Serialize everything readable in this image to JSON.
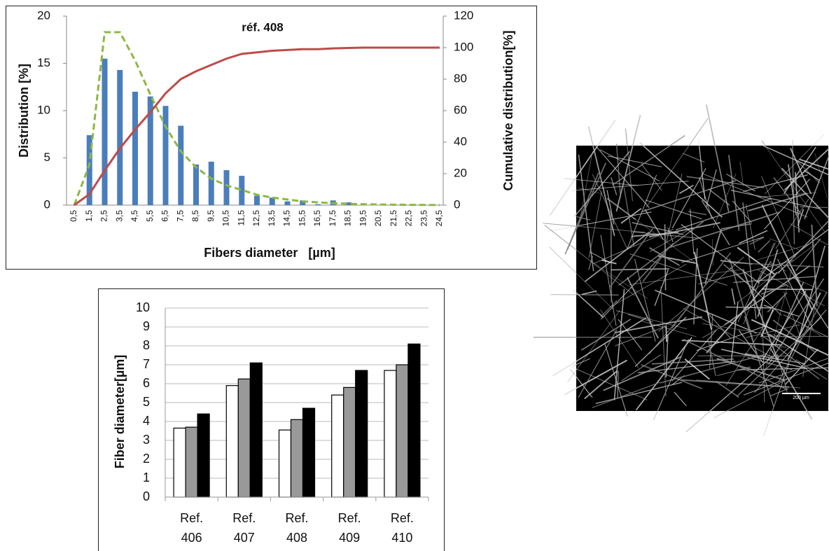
{
  "chart_data": [
    {
      "type": "bar",
      "title": "réf. 408",
      "xlabel": "Fibers diameter   [µm]",
      "ylabel": "Distribution [%]",
      "y2label": "Cumulative distribution[%]",
      "categories": [
        "0,5",
        "1,5",
        "2,5",
        "3,5",
        "4,5",
        "5,5",
        "6,5",
        "7,5",
        "8,5",
        "9,5",
        "10,5",
        "11,5",
        "12,5",
        "13,5",
        "14,5",
        "15,5",
        "16,5",
        "17,5",
        "18,5",
        "19,5",
        "20,5",
        "21,5",
        "22,5",
        "23,5",
        "24,5"
      ],
      "series": [
        {
          "type": "bar",
          "color": "#4a7ebb",
          "values": [
            0,
            7.4,
            15.5,
            14.3,
            12.0,
            11.5,
            10.5,
            8.4,
            4.3,
            4.6,
            3.7,
            3.1,
            1.0,
            0.8,
            0.4,
            0.5,
            0.1,
            0.5,
            0.3,
            0,
            0,
            0,
            0,
            0,
            0
          ]
        },
        {
          "type": "line",
          "dash": true,
          "color": "#8db843",
          "values": [
            0,
            4.3,
            18.3,
            18.3,
            15.3,
            11.7,
            8.3,
            5.7,
            4.0,
            2.8,
            2.1,
            1.6,
            1.1,
            0.8,
            0.6,
            0.4,
            0.3,
            0.2,
            0.15,
            0.1,
            0.07,
            0.05,
            0.03,
            0.02,
            0.01
          ]
        },
        {
          "type": "line",
          "dash": false,
          "axis": "y2",
          "color": "#be4b48",
          "values": [
            0,
            7,
            22,
            36,
            48,
            59,
            71,
            80,
            85,
            89,
            93,
            96,
            97,
            98,
            98.5,
            99,
            99,
            99.5,
            99.8,
            100,
            100,
            100,
            100,
            100,
            100
          ]
        }
      ],
      "ylim": [
        0,
        20
      ],
      "yticks": [
        0,
        5,
        10,
        15,
        20
      ],
      "y2lim": [
        0,
        120
      ],
      "y2ticks": [
        0,
        20,
        40,
        60,
        80,
        100,
        120
      ]
    },
    {
      "type": "grouped-bar",
      "ylabel": "Fiber diameter[µm]",
      "categories": [
        "Ref. 406",
        "Ref. 407",
        "Ref. 408",
        "Ref. 409",
        "Ref. 410"
      ],
      "series": [
        {
          "color": "#ffffff",
          "values": [
            3.65,
            5.9,
            3.55,
            5.4,
            6.7
          ]
        },
        {
          "color": "#999999",
          "values": [
            3.7,
            6.25,
            4.1,
            5.8,
            7.0
          ]
        },
        {
          "color": "#000000",
          "values": [
            4.4,
            7.1,
            4.7,
            6.7,
            8.1
          ]
        }
      ],
      "ylim": [
        0,
        10
      ],
      "yticks": [
        0,
        1,
        2,
        3,
        4,
        5,
        6,
        7,
        8,
        9,
        10
      ],
      "grid": true
    }
  ],
  "image": {
    "scale_label": "200 µm"
  }
}
